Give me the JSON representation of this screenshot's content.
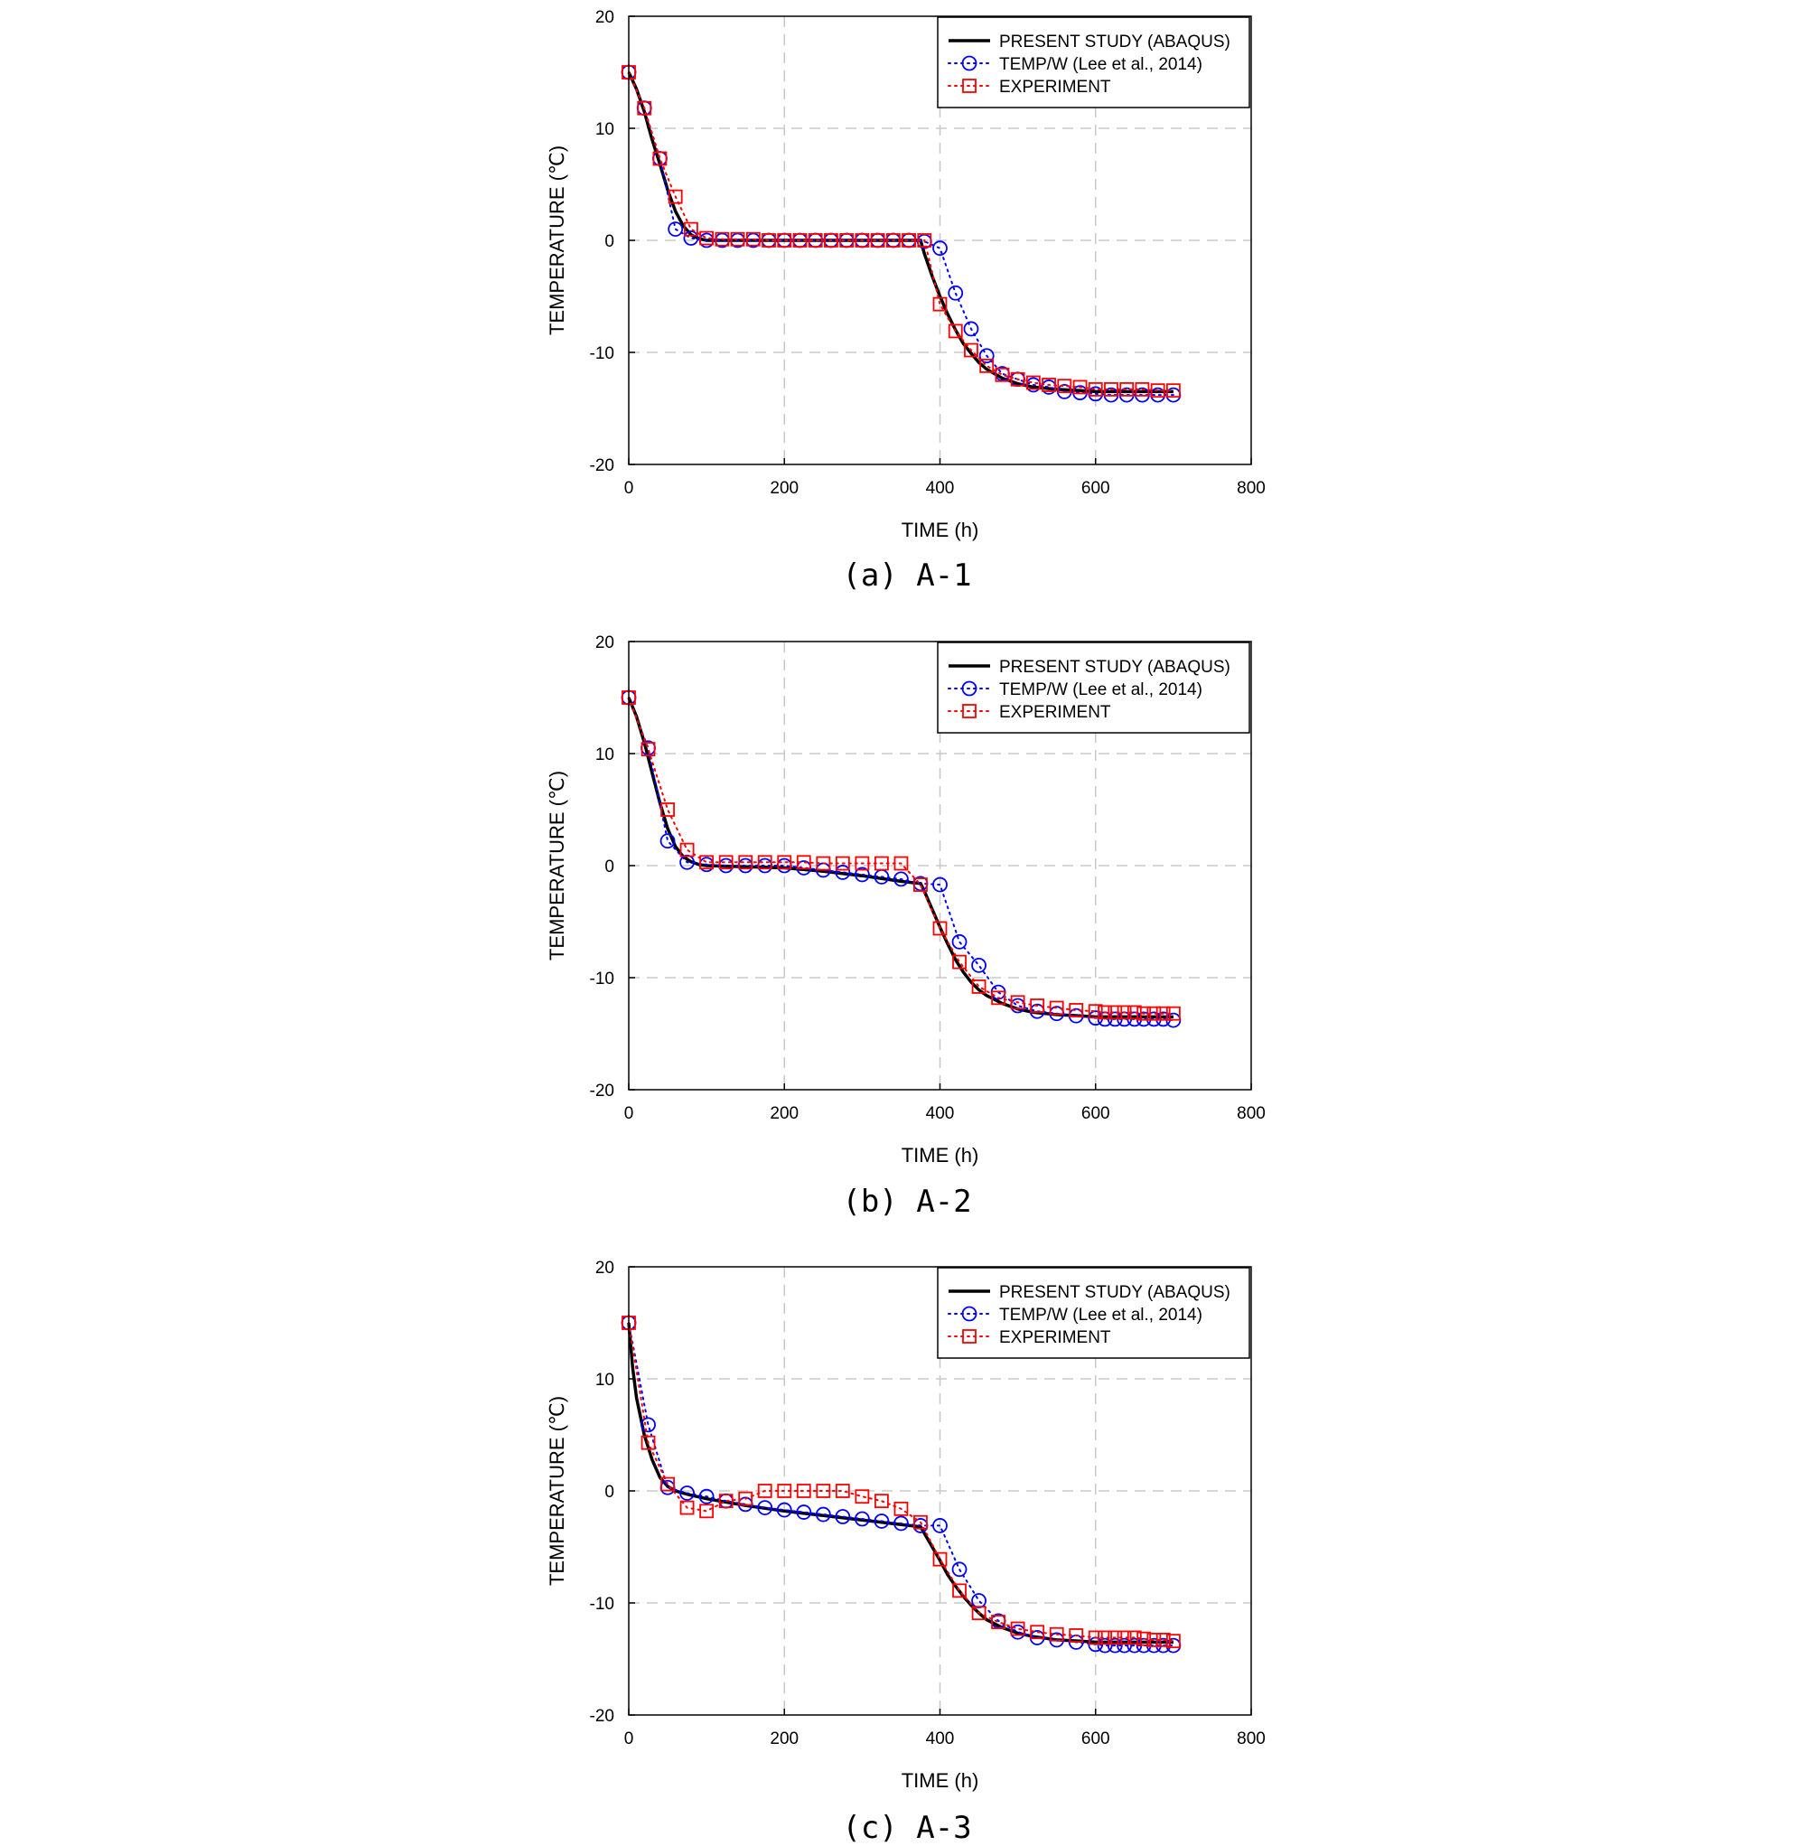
{
  "series_styles": [
    {
      "name": "PRESENT STUDY (ABAQUS)",
      "color": "#000000",
      "marker": "none",
      "line": "solid"
    },
    {
      "name": "TEMP/W (Lee et al., 2014)",
      "color": "#0000ff",
      "marker": "circle",
      "line": "dotted"
    },
    {
      "name": "EXPERIMENT",
      "color": "#ff0000",
      "marker": "square",
      "line": "dotted"
    }
  ],
  "chart_data": [
    {
      "type": "line",
      "caption": "(a) A-1",
      "xlabel": "TIME (h)",
      "ylabel": "TEMPERATURE (℃)",
      "xlim": [
        0,
        800
      ],
      "ylim": [
        -20,
        20
      ],
      "xticks": [
        0,
        200,
        400,
        600,
        800
      ],
      "yticks": [
        -20,
        -10,
        0,
        10,
        20
      ],
      "grid": true,
      "legend_position": "top-right",
      "series": [
        {
          "name": "PRESENT STUDY (ABAQUS)",
          "x": [
            0,
            10,
            20,
            30,
            40,
            50,
            60,
            70,
            80,
            90,
            100,
            150,
            200,
            250,
            300,
            350,
            375,
            380,
            390,
            400,
            410,
            420,
            430,
            440,
            450,
            460,
            480,
            500,
            520,
            550,
            580,
            600,
            650,
            700
          ],
          "y": [
            15,
            13.5,
            11.5,
            9,
            6.8,
            4.5,
            2.6,
            1.3,
            0.5,
            0.15,
            0,
            0,
            0,
            0,
            0,
            0,
            0,
            -1.2,
            -3.2,
            -5,
            -6.6,
            -8,
            -9.2,
            -10.1,
            -10.9,
            -11.5,
            -12.3,
            -12.8,
            -13.1,
            -13.3,
            -13.4,
            -13.5,
            -13.5,
            -13.5
          ]
        },
        {
          "name": "TEMP/W (Lee et al., 2014)",
          "x": [
            0,
            20,
            40,
            60,
            80,
            100,
            120,
            140,
            160,
            180,
            200,
            220,
            240,
            260,
            280,
            300,
            320,
            340,
            360,
            380,
            400,
            420,
            440,
            460,
            480,
            500,
            520,
            540,
            560,
            580,
            600,
            620,
            640,
            660,
            680,
            700
          ],
          "y": [
            15,
            11.8,
            7.3,
            1,
            0.2,
            0,
            0,
            0,
            0,
            0,
            0,
            0,
            0,
            0,
            0,
            0,
            0,
            0,
            0,
            -0.1,
            -0.7,
            -4.7,
            -7.9,
            -10.3,
            -11.9,
            -12.4,
            -12.9,
            -13.1,
            -13.5,
            -13.6,
            -13.7,
            -13.8,
            -13.8,
            -13.8,
            -13.8,
            -13.8
          ]
        },
        {
          "name": "EXPERIMENT",
          "x": [
            0,
            20,
            40,
            60,
            80,
            100,
            120,
            140,
            160,
            180,
            200,
            220,
            240,
            260,
            280,
            300,
            320,
            340,
            360,
            380,
            400,
            420,
            440,
            460,
            480,
            500,
            520,
            540,
            560,
            580,
            600,
            620,
            640,
            660,
            680,
            700
          ],
          "y": [
            15,
            11.8,
            7.3,
            3.9,
            1,
            0.2,
            0.1,
            0.1,
            0.1,
            0,
            0,
            0,
            0,
            0,
            0,
            0,
            0,
            0,
            0,
            0,
            -5.7,
            -8.1,
            -9.8,
            -11.2,
            -12,
            -12.4,
            -12.7,
            -12.9,
            -13,
            -13.1,
            -13.3,
            -13.3,
            -13.3,
            -13.3,
            -13.4,
            -13.4
          ]
        }
      ]
    },
    {
      "type": "line",
      "caption": "(b) A-2",
      "xlabel": "TIME (h)",
      "ylabel": "TEMPERATURE (℃)",
      "xlim": [
        0,
        800
      ],
      "ylim": [
        -20,
        20
      ],
      "xticks": [
        0,
        200,
        400,
        600,
        800
      ],
      "yticks": [
        -20,
        -10,
        0,
        10,
        20
      ],
      "grid": true,
      "legend_position": "top-right",
      "series": [
        {
          "name": "PRESENT STUDY (ABAQUS)",
          "x": [
            0,
            10,
            20,
            30,
            40,
            50,
            60,
            70,
            80,
            90,
            100,
            150,
            200,
            250,
            300,
            350,
            375,
            380,
            390,
            400,
            410,
            420,
            430,
            440,
            450,
            460,
            480,
            500,
            520,
            550,
            580,
            600,
            650,
            700
          ],
          "y": [
            15,
            13.3,
            11,
            8.3,
            5.6,
            3.3,
            1.7,
            0.8,
            0.35,
            0.1,
            0,
            -0.1,
            -0.2,
            -0.5,
            -0.9,
            -1.4,
            -1.6,
            -2.3,
            -3.9,
            -5.5,
            -7,
            -8.4,
            -9.5,
            -10.4,
            -11.1,
            -11.6,
            -12.3,
            -12.8,
            -13.1,
            -13.3,
            -13.4,
            -13.5,
            -13.5,
            -13.5
          ]
        },
        {
          "name": "TEMP/W (Lee et al., 2014)",
          "x": [
            0,
            25,
            50,
            75,
            100,
            125,
            150,
            175,
            200,
            225,
            250,
            275,
            300,
            325,
            350,
            375,
            400,
            425,
            450,
            475,
            500,
            525,
            550,
            575,
            600,
            612,
            625,
            637,
            650,
            662,
            675,
            687,
            700
          ],
          "y": [
            15,
            10.5,
            2.2,
            0.3,
            0.1,
            0,
            0,
            0,
            0,
            -0.2,
            -0.4,
            -0.6,
            -0.8,
            -1,
            -1.2,
            -1.6,
            -1.7,
            -6.8,
            -8.9,
            -11.3,
            -12.5,
            -13,
            -13.2,
            -13.4,
            -13.6,
            -13.7,
            -13.7,
            -13.7,
            -13.7,
            -13.7,
            -13.7,
            -13.7,
            -13.8
          ]
        },
        {
          "name": "EXPERIMENT",
          "x": [
            0,
            25,
            50,
            75,
            100,
            125,
            150,
            175,
            200,
            225,
            250,
            275,
            300,
            325,
            350,
            375,
            400,
            425,
            450,
            475,
            500,
            525,
            550,
            575,
            600,
            612,
            625,
            637,
            650,
            662,
            675,
            687,
            700
          ],
          "y": [
            15,
            10.4,
            5,
            1.4,
            0.3,
            0.3,
            0.3,
            0.3,
            0.3,
            0.3,
            0.2,
            0.2,
            0.2,
            0.2,
            0.2,
            -1.7,
            -5.6,
            -8.6,
            -10.8,
            -11.8,
            -12.2,
            -12.5,
            -12.7,
            -12.9,
            -13,
            -13.1,
            -13.1,
            -13.1,
            -13.1,
            -13.2,
            -13.2,
            -13.2,
            -13.2
          ]
        }
      ]
    },
    {
      "type": "line",
      "caption": "(c) A-3",
      "xlabel": "TIME (h)",
      "ylabel": "TEMPERATURE (℃)",
      "xlim": [
        0,
        800
      ],
      "ylim": [
        -20,
        20
      ],
      "xticks": [
        0,
        200,
        400,
        600,
        800
      ],
      "yticks": [
        -20,
        -10,
        0,
        10,
        20
      ],
      "grid": true,
      "legend_position": "top-right",
      "series": [
        {
          "name": "PRESENT STUDY (ABAQUS)",
          "x": [
            0,
            5,
            10,
            20,
            30,
            40,
            50,
            60,
            75,
            100,
            150,
            200,
            250,
            300,
            350,
            375,
            380,
            390,
            400,
            410,
            420,
            430,
            440,
            450,
            460,
            480,
            500,
            520,
            550,
            580,
            600,
            650,
            700
          ],
          "y": [
            15,
            11,
            8.3,
            5,
            2.8,
            1.2,
            0.4,
            0,
            -0.3,
            -0.7,
            -1.3,
            -1.8,
            -2.2,
            -2.6,
            -3,
            -3.2,
            -3.8,
            -5,
            -6.2,
            -7.5,
            -8.5,
            -9.4,
            -10.2,
            -10.9,
            -11.5,
            -12.2,
            -12.7,
            -13,
            -13.3,
            -13.4,
            -13.5,
            -13.5,
            -13.5
          ]
        },
        {
          "name": "TEMP/W (Lee et al., 2014)",
          "x": [
            0,
            25,
            50,
            75,
            100,
            125,
            150,
            175,
            200,
            225,
            250,
            275,
            300,
            325,
            350,
            375,
            400,
            425,
            450,
            475,
            500,
            525,
            550,
            575,
            600,
            612,
            625,
            637,
            650,
            662,
            675,
            687,
            700
          ],
          "y": [
            15,
            5.9,
            0.3,
            -0.2,
            -0.5,
            -0.9,
            -1.2,
            -1.5,
            -1.7,
            -1.9,
            -2.1,
            -2.3,
            -2.5,
            -2.7,
            -2.9,
            -3.1,
            -3.1,
            -7,
            -9.8,
            -11.6,
            -12.6,
            -13.1,
            -13.3,
            -13.5,
            -13.7,
            -13.8,
            -13.8,
            -13.8,
            -13.8,
            -13.8,
            -13.8,
            -13.8,
            -13.8
          ]
        },
        {
          "name": "EXPERIMENT",
          "x": [
            0,
            25,
            50,
            75,
            100,
            125,
            150,
            175,
            200,
            225,
            250,
            275,
            300,
            325,
            350,
            375,
            400,
            425,
            450,
            475,
            500,
            525,
            550,
            575,
            600,
            612,
            625,
            637,
            650,
            662,
            675,
            687,
            700
          ],
          "y": [
            15,
            4.3,
            0.6,
            -1.5,
            -1.8,
            -0.9,
            -0.7,
            0,
            0,
            0,
            0,
            0,
            -0.5,
            -0.9,
            -1.6,
            -2.8,
            -6.1,
            -8.9,
            -10.9,
            -11.7,
            -12.3,
            -12.6,
            -12.8,
            -12.9,
            -13.1,
            -13.1,
            -13.1,
            -13.1,
            -13.1,
            -13.2,
            -13.3,
            -13.3,
            -13.4
          ]
        }
      ]
    }
  ]
}
